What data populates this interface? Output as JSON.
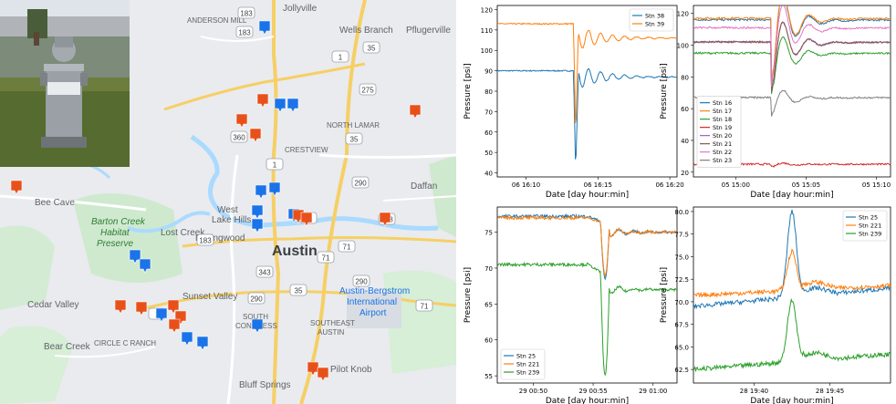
{
  "map": {
    "water": "#aadaff",
    "land": "#e8eaed",
    "park": "#c5e8c5",
    "highway": "#f5cd6b",
    "blue_marker": "#1a73e8",
    "red_marker": "#e8501a",
    "labels": {
      "jollyville": "Jollyville",
      "anderson_mill": "ANDERSON MILL",
      "wells_branch": "Wells Branch",
      "pflugerville": "Pflugerville",
      "north_lamar": "NORTH LAMAR",
      "crestview": "CRESTVIEW",
      "daffan": "Daffan",
      "bee_cave": "Bee Cave",
      "barton_creek": "Barton Creek",
      "habitat": "Habitat",
      "preserve": "Preserve",
      "lost_creek": "Lost Creek",
      "west": "West",
      "lake_hills": "Lake Hills",
      "rollingwood": "Rollingwood",
      "austin": "Austin",
      "austin_bergstrom": "Austin-Bergstrom",
      "international": "International",
      "airport": "Airport",
      "cedar_valley": "Cedar Valley",
      "sunset_valley": "Sunset Valley",
      "south": "SOUTH",
      "congress": "CONGRESS",
      "southeast": "SOUTHEAST",
      "southeast_austin": "AUSTIN",
      "bear_creek": "Bear Creek",
      "circle_c": "CIRCLE C RANCH",
      "pilot_knob": "Pilot Knob",
      "bluff_springs": "Bluff Springs"
    },
    "shields": [
      "183",
      "35",
      "1",
      "275",
      "360",
      "35",
      "290",
      "183",
      "71",
      "1",
      "71",
      "343",
      "290",
      "35",
      "1",
      "45",
      "290",
      "71",
      "183",
      "183"
    ],
    "blue_markers": [
      [
        290,
        30
      ],
      [
        307,
        115
      ],
      [
        321,
        115
      ],
      [
        286,
        210
      ],
      [
        301,
        207
      ],
      [
        282,
        232
      ],
      [
        282,
        247
      ],
      [
        322,
        236
      ],
      [
        148,
        281
      ],
      [
        159,
        291
      ],
      [
        177,
        345
      ],
      [
        205,
        371
      ],
      [
        222,
        376
      ],
      [
        282,
        357
      ]
    ],
    "red_markers": [
      [
        288,
        110
      ],
      [
        265,
        132
      ],
      [
        280,
        148
      ],
      [
        455,
        122
      ],
      [
        18,
        205
      ],
      [
        327,
        237
      ],
      [
        336,
        240
      ],
      [
        422,
        240
      ],
      [
        132,
        336
      ],
      [
        155,
        338
      ],
      [
        190,
        336
      ],
      [
        198,
        348
      ],
      [
        191,
        357
      ],
      [
        343,
        404
      ],
      [
        354,
        410
      ]
    ]
  },
  "chart_data": [
    {
      "type": "line",
      "title": "",
      "xlabel": "Date [day hour:min]",
      "ylabel": "Pressure [psi]",
      "xticks": [
        "06 16:10",
        "06 16:15",
        "06 16:20"
      ],
      "xlim": [
        8,
        20.5
      ],
      "ylim": [
        38,
        122
      ],
      "yticks": [
        40,
        50,
        60,
        70,
        80,
        90,
        100,
        110,
        120
      ],
      "legend": "top-right",
      "series": [
        {
          "name": "Stn 38",
          "color": "#1f77b4",
          "base": 90,
          "baseline_end": 87,
          "dip": 41,
          "osc": 7
        },
        {
          "name": "Stn 39",
          "color": "#ff7f0e",
          "base": 113,
          "baseline_end": 106,
          "dip": 58,
          "osc": 7
        }
      ],
      "event_x": 13.3
    },
    {
      "type": "line",
      "title": "",
      "xlabel": "Date [day hour:min]",
      "ylabel": "Pressure [psi]",
      "xticks": [
        "05 15:00",
        "05 15:05",
        "05 15:10"
      ],
      "xlim": [
        -3,
        11
      ],
      "ylim": [
        17,
        125
      ],
      "yticks": [
        20,
        40,
        60,
        80,
        100,
        120
      ],
      "legend": "left",
      "series": [
        {
          "name": "Stn 16",
          "color": "#1f77b4",
          "base": 116,
          "dip": 73
        },
        {
          "name": "Stn 17",
          "color": "#ff7f0e",
          "base": 117,
          "dip": 74
        },
        {
          "name": "Stn 18",
          "color": "#2ca02c",
          "base": 95,
          "dip": 68
        },
        {
          "name": "Stn 19",
          "color": "#d62728",
          "base": 25,
          "dip": 23
        },
        {
          "name": "Stn 20",
          "color": "#9467bd",
          "base": 102,
          "dip": 69
        },
        {
          "name": "Stn 21",
          "color": "#8c564b",
          "base": 102,
          "dip": 69
        },
        {
          "name": "Stn 22",
          "color": "#e377c2",
          "base": 111,
          "dip": 72
        },
        {
          "name": "Stn 23",
          "color": "#7f7f7f",
          "base": 67,
          "dip": 55
        }
      ],
      "event_x": 2.5
    },
    {
      "type": "line",
      "title": "",
      "xlabel": "Date [day hour:min]",
      "ylabel": "Pressure [psi]",
      "xticks": [
        "29 00:50",
        "29 00:55",
        "29 01:00"
      ],
      "xlim": [
        47,
        62
      ],
      "ylim": [
        54,
        78.5
      ],
      "yticks": [
        55,
        60,
        65,
        70,
        75
      ],
      "legend": "bottom-left",
      "series": [
        {
          "name": "Stn 25",
          "color": "#1f77b4",
          "base": 77.2,
          "end": 75,
          "dip": 68.5
        },
        {
          "name": "Stn 221",
          "color": "#ff7f0e",
          "base": 77,
          "end": 75,
          "dip": 69
        },
        {
          "name": "Stn 239",
          "color": "#2ca02c",
          "base": 70.5,
          "end": 67,
          "dip": 55
        }
      ],
      "event_x": 55.6
    },
    {
      "type": "line",
      "title": "",
      "xlabel": "Date [day hour:min]",
      "ylabel": "Pressure [psi]",
      "xticks": [
        "28 19:40",
        "28 19:45"
      ],
      "xlim": [
        36,
        49
      ],
      "ylim": [
        61,
        80.5
      ],
      "yticks": [
        62.5,
        65.0,
        67.5,
        70.0,
        72.5,
        75.0,
        77.5,
        80.0
      ],
      "legend": "top-right",
      "series": [
        {
          "name": "Stn 25",
          "color": "#1f77b4",
          "base": 69.5,
          "end": 71.5,
          "peak": 79
        },
        {
          "name": "Stn 221",
          "color": "#ff7f0e",
          "base": 70.7,
          "end": 71.8,
          "peak": 75
        },
        {
          "name": "Stn 239",
          "color": "#2ca02c",
          "base": 62.5,
          "end": 64.2,
          "peak": 69.3
        }
      ],
      "event_x": 42.5
    }
  ]
}
